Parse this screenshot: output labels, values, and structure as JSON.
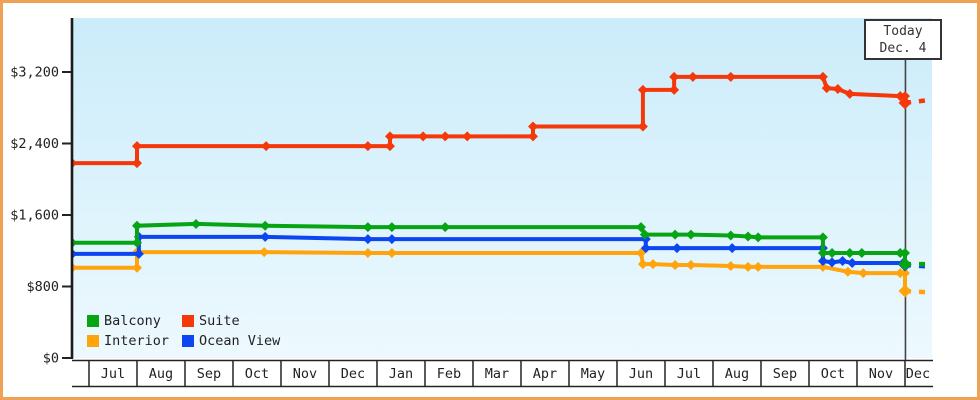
{
  "page": {
    "frame_color": "#efa155",
    "background": "#ffffff"
  },
  "today": {
    "line1": "Today",
    "line2": "Dec. 4"
  },
  "legend": [
    {
      "label": "Balcony",
      "color": "#07a414"
    },
    {
      "label": "Suite",
      "color": "#f5380a"
    },
    {
      "label": "Interior",
      "color": "#ffa40d"
    },
    {
      "label": "Ocean View",
      "color": "#0b46f0"
    }
  ],
  "chart_data": {
    "type": "line",
    "title": "",
    "xlabel": "",
    "ylabel": "",
    "categories": [
      "Jul",
      "Aug",
      "Sep",
      "Oct",
      "Nov",
      "Dec",
      "Jan",
      "Feb",
      "Mar",
      "Apr",
      "May",
      "Jun",
      "Jul",
      "Aug",
      "Sep",
      "Oct",
      "Nov",
      "Dec"
    ],
    "y_axis": {
      "min": 0,
      "max": 3200,
      "ticks": [
        {
          "value": 0,
          "label": "$0"
        },
        {
          "value": 800,
          "label": "$800"
        },
        {
          "value": 1600,
          "label": "$1,600"
        },
        {
          "value": 2400,
          "label": "$2,400"
        },
        {
          "value": 3200,
          "label": "$3,200"
        }
      ]
    },
    "legend_position": "bottom-left",
    "grid": false,
    "today_marker": {
      "label": "Today Dec. 4",
      "month_offset": 17.02
    },
    "x_note": "month_offset 0 = start of first Jul; chart window runs mid-Jun to early-Dec next year; dashed = projection after today",
    "series": [
      {
        "name": "Interior",
        "color": "#ffa40d",
        "points": [
          [
            -0.35,
            1010
          ],
          [
            1,
            1010
          ],
          [
            1,
            1185
          ],
          [
            3.65,
            1185
          ],
          [
            5.81,
            1175
          ],
          [
            6.31,
            1175
          ],
          [
            11.5,
            1175
          ],
          [
            11.54,
            1050
          ],
          [
            11.75,
            1050
          ],
          [
            12.21,
            1040
          ],
          [
            12.54,
            1040
          ],
          [
            13.37,
            1030
          ],
          [
            13.73,
            1020
          ],
          [
            13.94,
            1020
          ],
          [
            15.29,
            1020
          ],
          [
            15.81,
            965
          ],
          [
            16.13,
            950
          ],
          [
            16.9,
            950
          ],
          [
            17,
            950
          ],
          [
            17,
            750
          ]
        ],
        "projected": [
          [
            17,
            750
          ],
          [
            17.56,
            732
          ]
        ]
      },
      {
        "name": "Ocean View",
        "color": "#0b46f0",
        "points": [
          [
            -0.35,
            1165
          ],
          [
            1.04,
            1165
          ],
          [
            1.04,
            1355
          ],
          [
            3.67,
            1355
          ],
          [
            5.81,
            1330
          ],
          [
            6.31,
            1330
          ],
          [
            11.6,
            1330
          ],
          [
            11.6,
            1230
          ],
          [
            12.25,
            1230
          ],
          [
            13.4,
            1230
          ],
          [
            15.29,
            1230
          ],
          [
            15.29,
            1085
          ],
          [
            15.48,
            1070
          ],
          [
            15.7,
            1085
          ],
          [
            15.9,
            1063
          ],
          [
            16.96,
            1063
          ],
          [
            17,
            1040
          ]
        ],
        "projected": [
          [
            17,
            1040
          ],
          [
            17.56,
            1022
          ]
        ]
      },
      {
        "name": "Balcony",
        "color": "#07a414",
        "points": [
          [
            -0.35,
            1290
          ],
          [
            1,
            1290
          ],
          [
            1,
            1480
          ],
          [
            2.23,
            1500
          ],
          [
            3.67,
            1480
          ],
          [
            5.81,
            1465
          ],
          [
            6.31,
            1465
          ],
          [
            7.42,
            1465
          ],
          [
            11.5,
            1465
          ],
          [
            11.58,
            1380
          ],
          [
            12.21,
            1380
          ],
          [
            12.54,
            1380
          ],
          [
            13.37,
            1370
          ],
          [
            13.73,
            1360
          ],
          [
            13.94,
            1350
          ],
          [
            15.29,
            1350
          ],
          [
            15.29,
            1175
          ],
          [
            15.48,
            1175
          ],
          [
            15.85,
            1175
          ],
          [
            16.1,
            1175
          ],
          [
            16.9,
            1175
          ],
          [
            17,
            1175
          ],
          [
            17,
            1050
          ]
        ],
        "projected": [
          [
            17,
            1050
          ],
          [
            17.56,
            1050
          ]
        ]
      },
      {
        "name": "Suite",
        "color": "#f5380a",
        "points": [
          [
            -0.35,
            2180
          ],
          [
            1,
            2180
          ],
          [
            1,
            2370
          ],
          [
            3.69,
            2370
          ],
          [
            5.81,
            2370
          ],
          [
            6.27,
            2370
          ],
          [
            6.27,
            2480
          ],
          [
            6.96,
            2480
          ],
          [
            7.42,
            2480
          ],
          [
            7.88,
            2480
          ],
          [
            9.25,
            2480
          ],
          [
            9.25,
            2590
          ],
          [
            11.54,
            2590
          ],
          [
            11.54,
            3000
          ],
          [
            12.19,
            3000
          ],
          [
            12.19,
            3145
          ],
          [
            12.58,
            3145
          ],
          [
            13.37,
            3145
          ],
          [
            15.29,
            3145
          ],
          [
            15.37,
            3020
          ],
          [
            15.6,
            3010
          ],
          [
            15.85,
            2955
          ],
          [
            16.9,
            2930
          ],
          [
            17,
            2930
          ],
          [
            17,
            2855
          ]
        ],
        "projected": [
          [
            17,
            2855
          ],
          [
            17.56,
            2890
          ]
        ]
      }
    ]
  }
}
